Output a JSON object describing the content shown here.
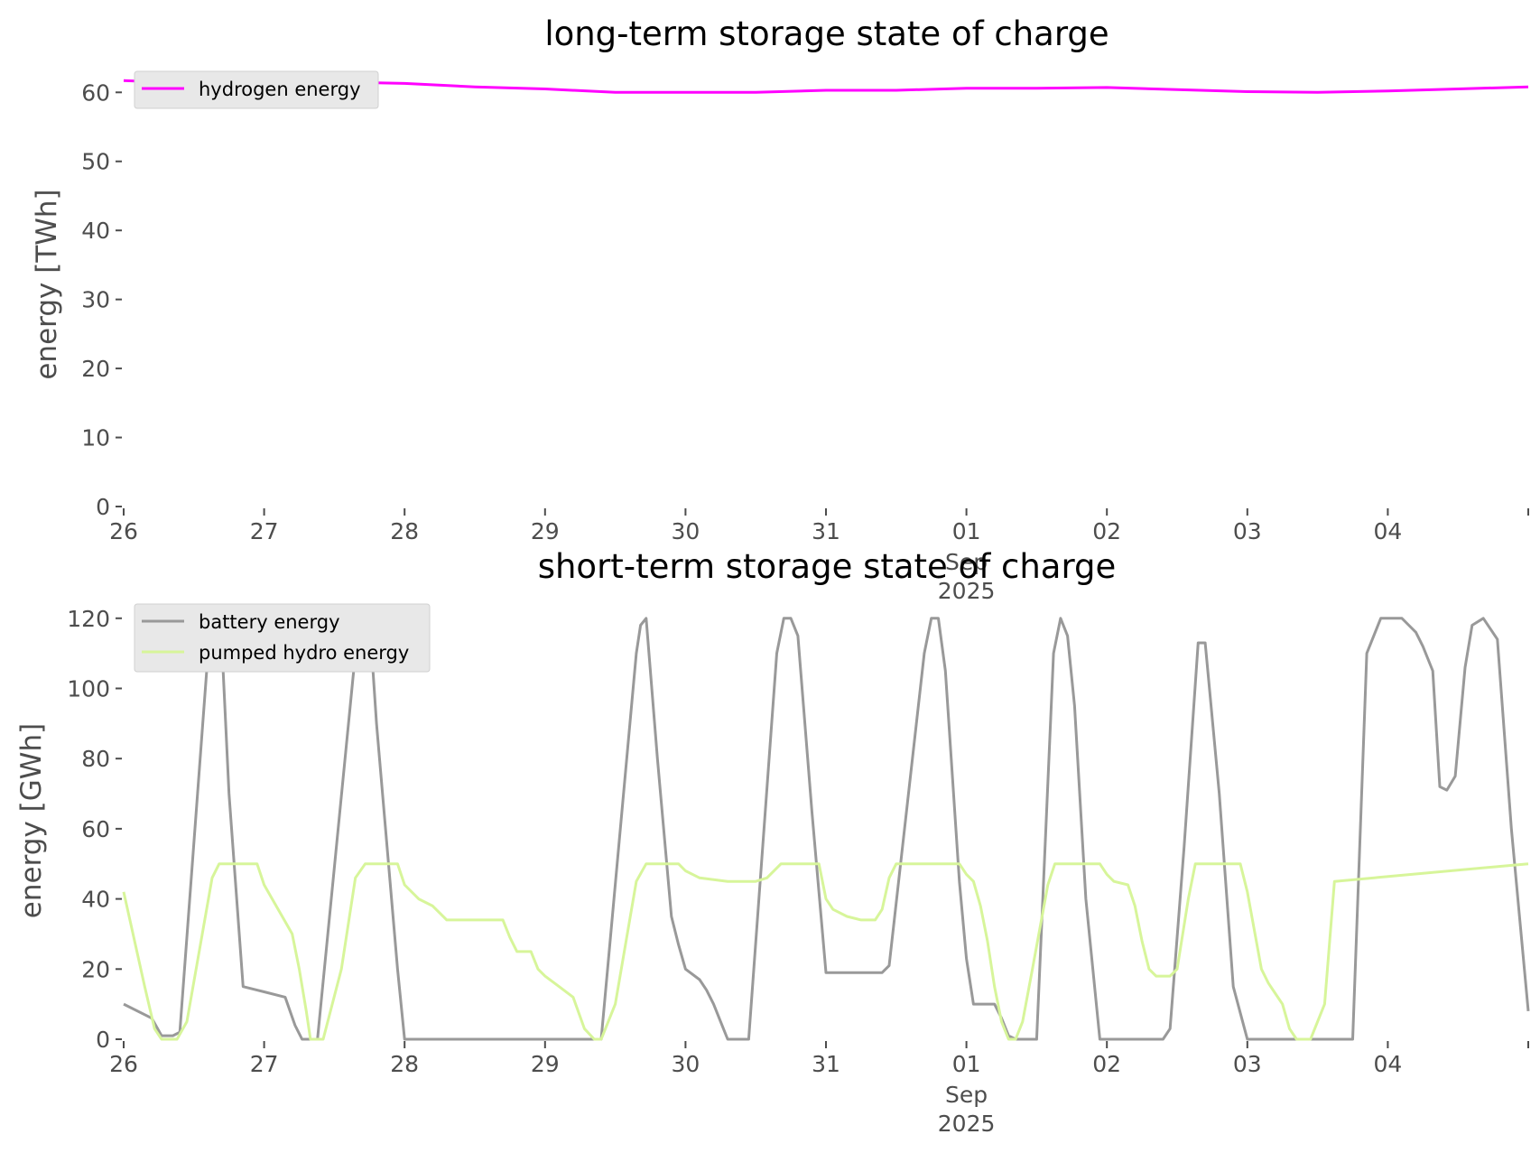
{
  "chart_data": [
    {
      "type": "line",
      "title": "long-term storage state of charge",
      "xlabel": "",
      "ylabel": "energy [TWh]",
      "ylim": [
        0,
        62
      ],
      "yticks": [
        0,
        10,
        20,
        30,
        40,
        50,
        60
      ],
      "xlim": [
        0,
        10
      ],
      "x_tick_labels": [
        "26",
        "27",
        "28",
        "29",
        "30",
        "31",
        "01",
        "02",
        "03",
        "04"
      ],
      "x_secondary_label": [
        "Sep",
        "2025"
      ],
      "grid": false,
      "legend_position": "top-left",
      "series": [
        {
          "name": "hydrogen energy",
          "color": "#ff00ff",
          "x": [
            0,
            0.5,
            1,
            1.5,
            2,
            2.5,
            3,
            3.5,
            4,
            4.5,
            5,
            5.5,
            6,
            6.5,
            7,
            7.5,
            8,
            8.5,
            9,
            9.5,
            10
          ],
          "y": [
            61.7,
            61.3,
            61.6,
            61.5,
            61.3,
            60.8,
            60.5,
            60.0,
            60.0,
            60.0,
            60.3,
            60.3,
            60.6,
            60.6,
            60.7,
            60.4,
            60.1,
            60.0,
            60.2,
            60.5,
            60.8
          ]
        }
      ]
    },
    {
      "type": "line",
      "title": "short-term storage state of charge",
      "xlabel": "",
      "ylabel": "energy [GWh]",
      "ylim": [
        0,
        122
      ],
      "yticks": [
        0,
        20,
        40,
        60,
        80,
        100,
        120
      ],
      "xlim": [
        0,
        10
      ],
      "x_tick_labels": [
        "26",
        "27",
        "28",
        "29",
        "30",
        "31",
        "01",
        "02",
        "03",
        "04"
      ],
      "x_secondary_label": [
        "Sep",
        "2025"
      ],
      "grid": false,
      "legend_position": "top-left",
      "series": [
        {
          "name": "battery energy",
          "color": "#999999",
          "x": [
            0,
            0.2,
            0.27,
            0.35,
            0.4,
            0.6,
            0.65,
            0.7,
            0.75,
            0.85,
            0.95,
            1.0,
            1.15,
            1.22,
            1.27,
            1.32,
            1.38,
            1.65,
            1.7,
            1.75,
            1.8,
            1.95,
            2.0,
            3.0,
            3.3,
            3.4,
            3.65,
            3.68,
            3.72,
            3.8,
            3.9,
            3.95,
            4.0,
            4.1,
            4.15,
            4.2,
            4.25,
            4.3,
            4.35,
            4.4,
            4.45,
            4.65,
            4.7,
            4.75,
            4.8,
            4.9,
            5.0,
            5.4,
            5.45,
            5.7,
            5.75,
            5.8,
            5.85,
            5.95,
            6.0,
            6.05,
            6.1,
            6.2,
            6.25,
            6.3,
            6.35,
            6.4,
            6.5,
            6.62,
            6.67,
            6.72,
            6.77,
            6.85,
            6.95,
            7.4,
            7.45,
            7.55,
            7.65,
            7.7,
            7.8,
            7.9,
            8.0,
            8.7,
            8.75,
            8.85,
            8.95,
            9.1,
            9.15,
            9.2,
            9.25,
            9.32,
            9.37,
            9.42,
            9.48,
            9.55,
            9.6,
            9.68,
            9.78,
            9.88,
            10.0
          ],
          "y": [
            10,
            6,
            1,
            1,
            2,
            110,
            120,
            112,
            70,
            15,
            14,
            13.5,
            12,
            4,
            0,
            0,
            0,
            110,
            120,
            120,
            90,
            20,
            0,
            0,
            0,
            0,
            110,
            118,
            120,
            80,
            35,
            27,
            20,
            17,
            14,
            10,
            5,
            0,
            0,
            0,
            0,
            110,
            120,
            120,
            115,
            65,
            19,
            19,
            21,
            110,
            120,
            120,
            105,
            45,
            23,
            10,
            10,
            10,
            6,
            1,
            0,
            0,
            0,
            110,
            120,
            115,
            95,
            40,
            0,
            0,
            3,
            55,
            113,
            113,
            70,
            15,
            0,
            0,
            0,
            110,
            120,
            120,
            118,
            116,
            112,
            105,
            72,
            71,
            75,
            106,
            118,
            120,
            114,
            60,
            8
          ]
        },
        {
          "name": "pumped hydro energy",
          "color": "#d7f59a",
          "x": [
            0,
            0.15,
            0.22,
            0.27,
            0.32,
            0.38,
            0.45,
            0.63,
            0.68,
            0.95,
            1.0,
            1.1,
            1.2,
            1.25,
            1.3,
            1.33,
            1.38,
            1.42,
            1.55,
            1.65,
            1.72,
            1.95,
            2.0,
            2.1,
            2.2,
            2.3,
            2.5,
            2.7,
            2.75,
            2.8,
            2.9,
            2.95,
            3.0,
            3.1,
            3.2,
            3.28,
            3.35,
            3.4,
            3.5,
            3.65,
            3.72,
            3.95,
            4.0,
            4.1,
            4.3,
            4.5,
            4.58,
            4.68,
            4.95,
            5.0,
            5.05,
            5.15,
            5.25,
            5.3,
            5.35,
            5.4,
            5.45,
            5.5,
            5.57,
            5.62,
            5.95,
            6.0,
            6.05,
            6.1,
            6.15,
            6.2,
            6.25,
            6.3,
            6.35,
            6.4,
            6.47,
            6.58,
            6.63,
            6.68,
            6.95,
            7.0,
            7.05,
            7.15,
            7.2,
            7.25,
            7.3,
            7.35,
            7.4,
            7.45,
            7.5,
            7.58,
            7.63,
            7.95,
            8.0,
            8.1,
            8.15,
            8.2,
            8.25,
            8.3,
            8.35,
            8.4,
            8.45,
            8.55,
            8.62,
            10.0
          ],
          "y": [
            42,
            15,
            3,
            0,
            0,
            0,
            5,
            46,
            50,
            50,
            44,
            37,
            30,
            20,
            8,
            0,
            0,
            0,
            20,
            46,
            50,
            50,
            44,
            40,
            38,
            34,
            34,
            34,
            29,
            25,
            25,
            20,
            18,
            15,
            12,
            3,
            0,
            0,
            10,
            45,
            50,
            50,
            48,
            46,
            45,
            45,
            46,
            50,
            50,
            40,
            37,
            35,
            34,
            34,
            34,
            37,
            46,
            50,
            50,
            50,
            50,
            47,
            45,
            38,
            28,
            15,
            5,
            0,
            0,
            5,
            20,
            44,
            50,
            50,
            50,
            47,
            45,
            44,
            38,
            28,
            20,
            18,
            18,
            18,
            20,
            40,
            50,
            50,
            42,
            20,
            16,
            13,
            10,
            3,
            0,
            0,
            0,
            10,
            45,
            50
          ]
        }
      ]
    }
  ]
}
